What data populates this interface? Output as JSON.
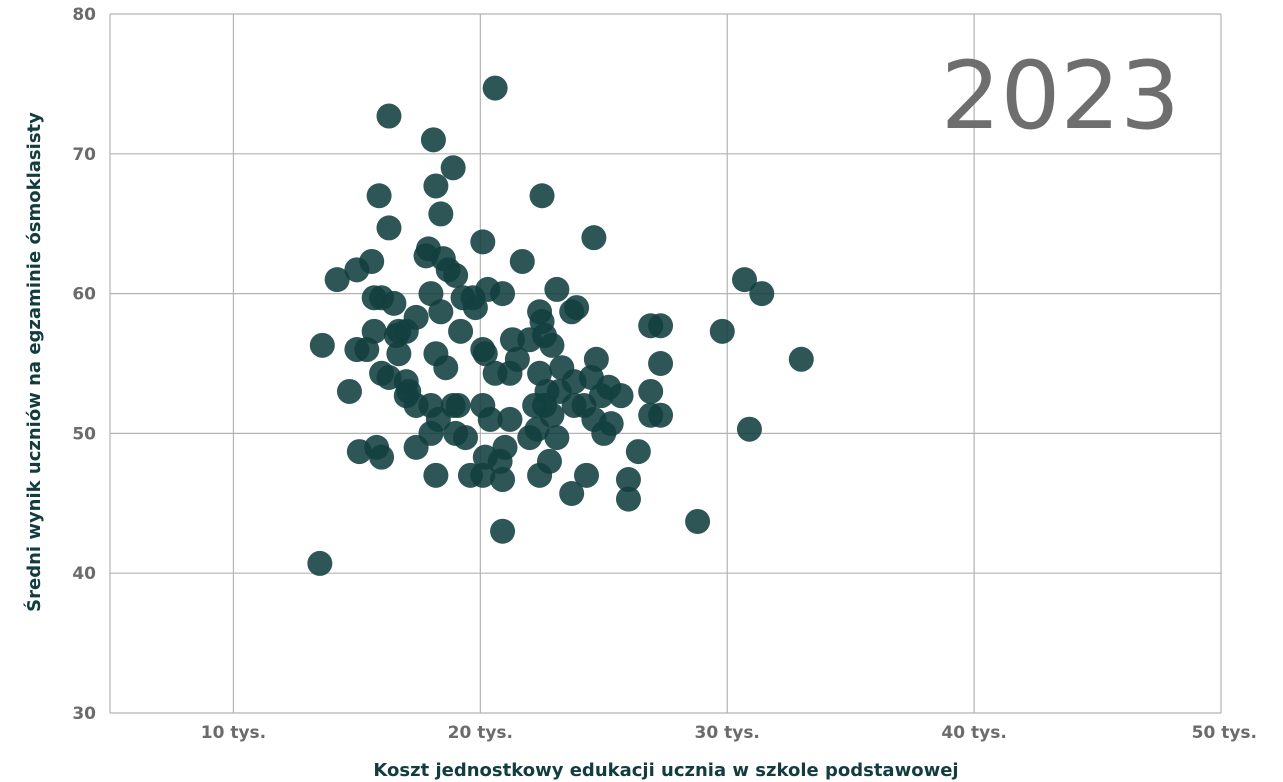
{
  "chart_data": {
    "type": "scatter",
    "year_label": "2023",
    "xlabel": "Koszt jednostkowy edukacji ucznia w szkole podstawowej",
    "ylabel": "Średni wynik uczniów na egzaminie ósmoklasisty",
    "xlim": [
      5000,
      50000
    ],
    "ylim": [
      30,
      80
    ],
    "x_ticks": [
      {
        "value": 10000,
        "label": "10 tys."
      },
      {
        "value": 20000,
        "label": "20 tys."
      },
      {
        "value": 30000,
        "label": "30 tys."
      },
      {
        "value": 40000,
        "label": "40 tys."
      },
      {
        "value": 50000,
        "label": "50 tys."
      }
    ],
    "y_ticks": [
      {
        "value": 30,
        "label": "30"
      },
      {
        "value": 40,
        "label": "40"
      },
      {
        "value": 50,
        "label": "50"
      },
      {
        "value": 60,
        "label": "60"
      },
      {
        "value": 70,
        "label": "70"
      },
      {
        "value": 80,
        "label": "80"
      }
    ],
    "grid": true,
    "point_color": "#123f3f",
    "points": [
      [
        20600,
        74.7
      ],
      [
        16300,
        72.7
      ],
      [
        18100,
        71.0
      ],
      [
        18900,
        69.0
      ],
      [
        18200,
        67.7
      ],
      [
        15900,
        67.0
      ],
      [
        22500,
        67.0
      ],
      [
        18400,
        65.7
      ],
      [
        16300,
        64.7
      ],
      [
        24600,
        64.0
      ],
      [
        20100,
        63.7
      ],
      [
        17900,
        63.2
      ],
      [
        17800,
        62.7
      ],
      [
        18500,
        62.5
      ],
      [
        15600,
        62.3
      ],
      [
        21700,
        62.3
      ],
      [
        15000,
        61.7
      ],
      [
        18700,
        61.7
      ],
      [
        19000,
        61.3
      ],
      [
        14200,
        61.0
      ],
      [
        30700,
        61.0
      ],
      [
        18000,
        60.0
      ],
      [
        20300,
        60.3
      ],
      [
        20900,
        60.0
      ],
      [
        31400,
        60.0
      ],
      [
        23100,
        60.3
      ],
      [
        15700,
        59.7
      ],
      [
        16000,
        59.7
      ],
      [
        16500,
        59.3
      ],
      [
        19300,
        59.7
      ],
      [
        19700,
        59.7
      ],
      [
        19800,
        59.0
      ],
      [
        22400,
        58.7
      ],
      [
        23900,
        59.0
      ],
      [
        23700,
        58.7
      ],
      [
        18400,
        58.7
      ],
      [
        17400,
        58.3
      ],
      [
        22500,
        58.0
      ],
      [
        15700,
        57.3
      ],
      [
        16700,
        57.3
      ],
      [
        16600,
        57.0
      ],
      [
        17000,
        57.3
      ],
      [
        19200,
        57.3
      ],
      [
        21300,
        56.7
      ],
      [
        22000,
        56.7
      ],
      [
        22600,
        57.0
      ],
      [
        26900,
        57.7
      ],
      [
        27300,
        57.7
      ],
      [
        29800,
        57.3
      ],
      [
        13600,
        56.3
      ],
      [
        15000,
        56.0
      ],
      [
        15400,
        56.0
      ],
      [
        20100,
        56.0
      ],
      [
        20200,
        55.7
      ],
      [
        22900,
        56.3
      ],
      [
        16700,
        55.7
      ],
      [
        18200,
        55.7
      ],
      [
        21500,
        55.3
      ],
      [
        24700,
        55.3
      ],
      [
        27300,
        55.0
      ],
      [
        33000,
        55.3
      ],
      [
        18600,
        54.7
      ],
      [
        16000,
        54.3
      ],
      [
        16300,
        54.0
      ],
      [
        20600,
        54.3
      ],
      [
        21200,
        54.3
      ],
      [
        22400,
        54.3
      ],
      [
        23300,
        54.7
      ],
      [
        24500,
        54.0
      ],
      [
        17000,
        53.7
      ],
      [
        23800,
        53.7
      ],
      [
        17100,
        53.0
      ],
      [
        14700,
        53.0
      ],
      [
        22700,
        53.0
      ],
      [
        23200,
        53.0
      ],
      [
        25200,
        53.3
      ],
      [
        26900,
        53.0
      ],
      [
        17000,
        52.7
      ],
      [
        24900,
        52.7
      ],
      [
        25700,
        52.7
      ],
      [
        17400,
        52.0
      ],
      [
        18000,
        52.0
      ],
      [
        18900,
        52.0
      ],
      [
        19100,
        52.0
      ],
      [
        20100,
        52.0
      ],
      [
        22200,
        52.0
      ],
      [
        22600,
        52.0
      ],
      [
        23800,
        52.0
      ],
      [
        24200,
        52.0
      ],
      [
        22900,
        51.3
      ],
      [
        27300,
        51.3
      ],
      [
        18300,
        51.0
      ],
      [
        20400,
        51.0
      ],
      [
        21200,
        51.0
      ],
      [
        24600,
        51.0
      ],
      [
        26900,
        51.3
      ],
      [
        25300,
        50.7
      ],
      [
        18000,
        50.0
      ],
      [
        19000,
        50.0
      ],
      [
        22300,
        50.3
      ],
      [
        22000,
        49.7
      ],
      [
        23100,
        49.7
      ],
      [
        25000,
        50.0
      ],
      [
        30900,
        50.3
      ],
      [
        15800,
        49.0
      ],
      [
        17400,
        49.0
      ],
      [
        19400,
        49.7
      ],
      [
        21000,
        49.0
      ],
      [
        26400,
        48.7
      ],
      [
        15100,
        48.7
      ],
      [
        16000,
        48.3
      ],
      [
        20200,
        48.3
      ],
      [
        20800,
        48.0
      ],
      [
        22800,
        48.0
      ],
      [
        18200,
        47.0
      ],
      [
        19600,
        47.0
      ],
      [
        20100,
        47.0
      ],
      [
        20900,
        46.7
      ],
      [
        22400,
        47.0
      ],
      [
        24300,
        47.0
      ],
      [
        26000,
        46.7
      ],
      [
        23700,
        45.7
      ],
      [
        26000,
        45.3
      ],
      [
        28800,
        43.7
      ],
      [
        20900,
        43.0
      ],
      [
        13500,
        40.7
      ]
    ]
  }
}
